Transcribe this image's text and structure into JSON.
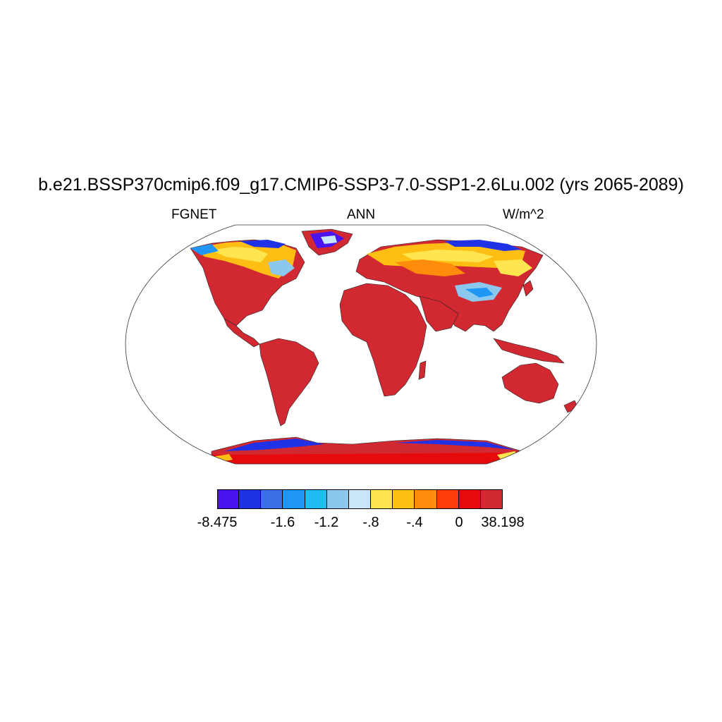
{
  "title": "b.e21.BSSP370cmip6.f09_g17.CMIP6-SSP3-7.0-SSP1-2.6Lu.002 (yrs 2065-2089)",
  "variable": "FGNET",
  "season": "ANN",
  "units": "W/m^2",
  "colorbar": {
    "colors": [
      "#4a14f0",
      "#1f32e6",
      "#3c6ee6",
      "#1f96f5",
      "#1ebef5",
      "#8cc8ee",
      "#c8e6f5",
      "#ffe650",
      "#ffbe14",
      "#ff8c0a",
      "#ff3c0a",
      "#e60a0a",
      "#d22832"
    ],
    "labels": [
      "-8.475",
      "-1.6",
      "-1.2",
      "-.8",
      "-.4",
      "0",
      "38.198"
    ]
  },
  "map": {
    "projection": "robinson",
    "land_color": "#d22832",
    "ocean_color": "#ffffff"
  }
}
